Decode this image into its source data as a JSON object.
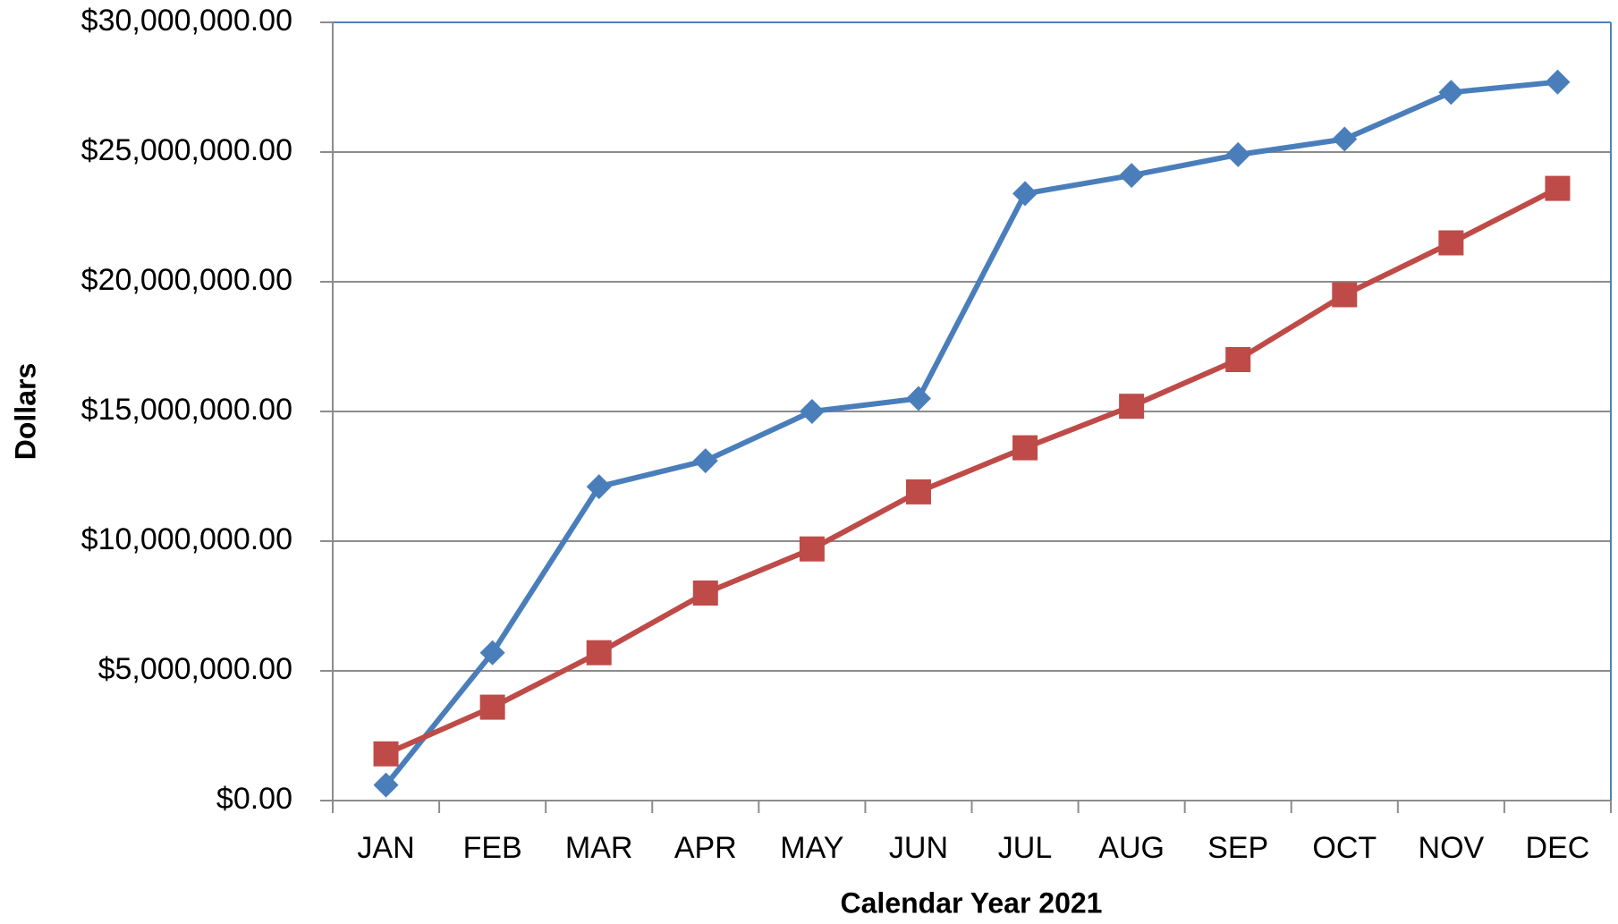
{
  "chart_data": {
    "type": "line",
    "x_label": "Calendar Year 2021",
    "y_label": "Dollars",
    "categories": [
      "JAN",
      "FEB",
      "MAR",
      "APR",
      "MAY",
      "JUN",
      "JUL",
      "AUG",
      "SEP",
      "OCT",
      "NOV",
      "DEC"
    ],
    "series": [
      {
        "color": "#4a7ebb",
        "marker": "diamond",
        "values": [
          600000,
          5700000,
          12100000,
          13100000,
          15000000,
          15500000,
          23400000,
          24100000,
          24900000,
          25500000,
          27300000,
          27700000
        ]
      },
      {
        "color": "#be4b48",
        "marker": "square",
        "values": [
          1800000,
          3600000,
          5700000,
          8000000,
          9700000,
          11900000,
          13600000,
          15200000,
          17000000,
          19500000,
          21500000,
          23600000
        ]
      }
    ],
    "ylim": [
      0,
      30000000
    ],
    "yticks": [
      {
        "value": 0,
        "label": "$0.00"
      },
      {
        "value": 5000000,
        "label": "$5,000,000.00"
      },
      {
        "value": 10000000,
        "label": "$10,000,000.00"
      },
      {
        "value": 15000000,
        "label": "$15,000,000.00"
      },
      {
        "value": 20000000,
        "label": "$20,000,000.00"
      },
      {
        "value": 25000000,
        "label": "$25,000,000.00"
      },
      {
        "value": 30000000,
        "label": "$30,000,000.00"
      }
    ],
    "grid": true
  }
}
